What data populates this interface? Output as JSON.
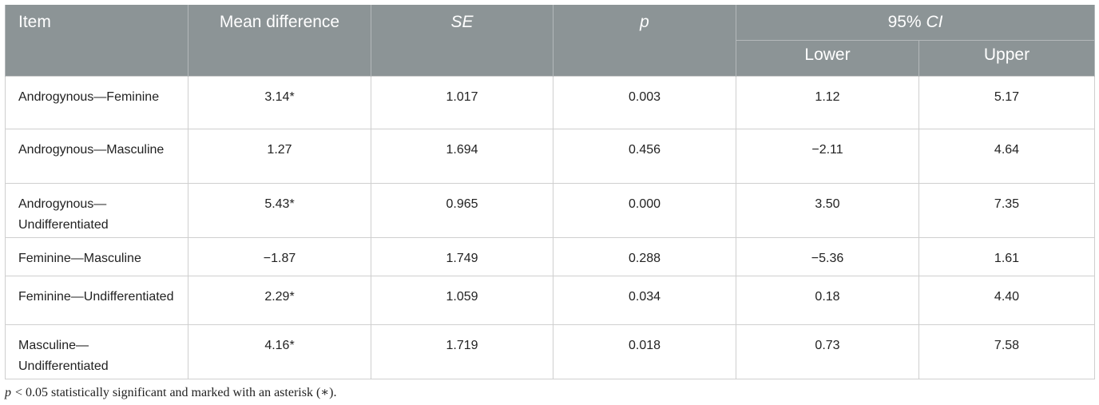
{
  "table": {
    "header": {
      "item": "Item",
      "mean_difference": "Mean difference",
      "se": "SE",
      "p": "p",
      "ci": {
        "prefix": "95%",
        "italic": "CI"
      },
      "lower": "Lower",
      "upper": "Upper"
    },
    "rows": [
      [
        "Androgynous—Feminine",
        "3.14*",
        "1.017",
        "0.003",
        "1.12",
        "5.17"
      ],
      [
        "Androgynous—Masculine",
        "1.27",
        "1.694",
        "0.456",
        "−2.11",
        "4.64"
      ],
      [
        "Androgynous—Undifferentiated",
        "5.43*",
        "0.965",
        "0.000",
        "3.50",
        "7.35"
      ],
      [
        "Feminine—Masculine",
        "−1.87",
        "1.749",
        "0.288",
        "−5.36",
        "1.61"
      ],
      [
        "Feminine—Undifferentiated",
        "2.29*",
        "1.059",
        "0.034",
        "0.18",
        "4.40"
      ],
      [
        "Masculine—Undifferentiated",
        "4.16*",
        "1.719",
        "0.018",
        "0.73",
        "7.58"
      ]
    ]
  },
  "footnote": {
    "italic": "p",
    "text": "< 0.05 statistically significant and marked with an asterisk (∗)."
  }
}
